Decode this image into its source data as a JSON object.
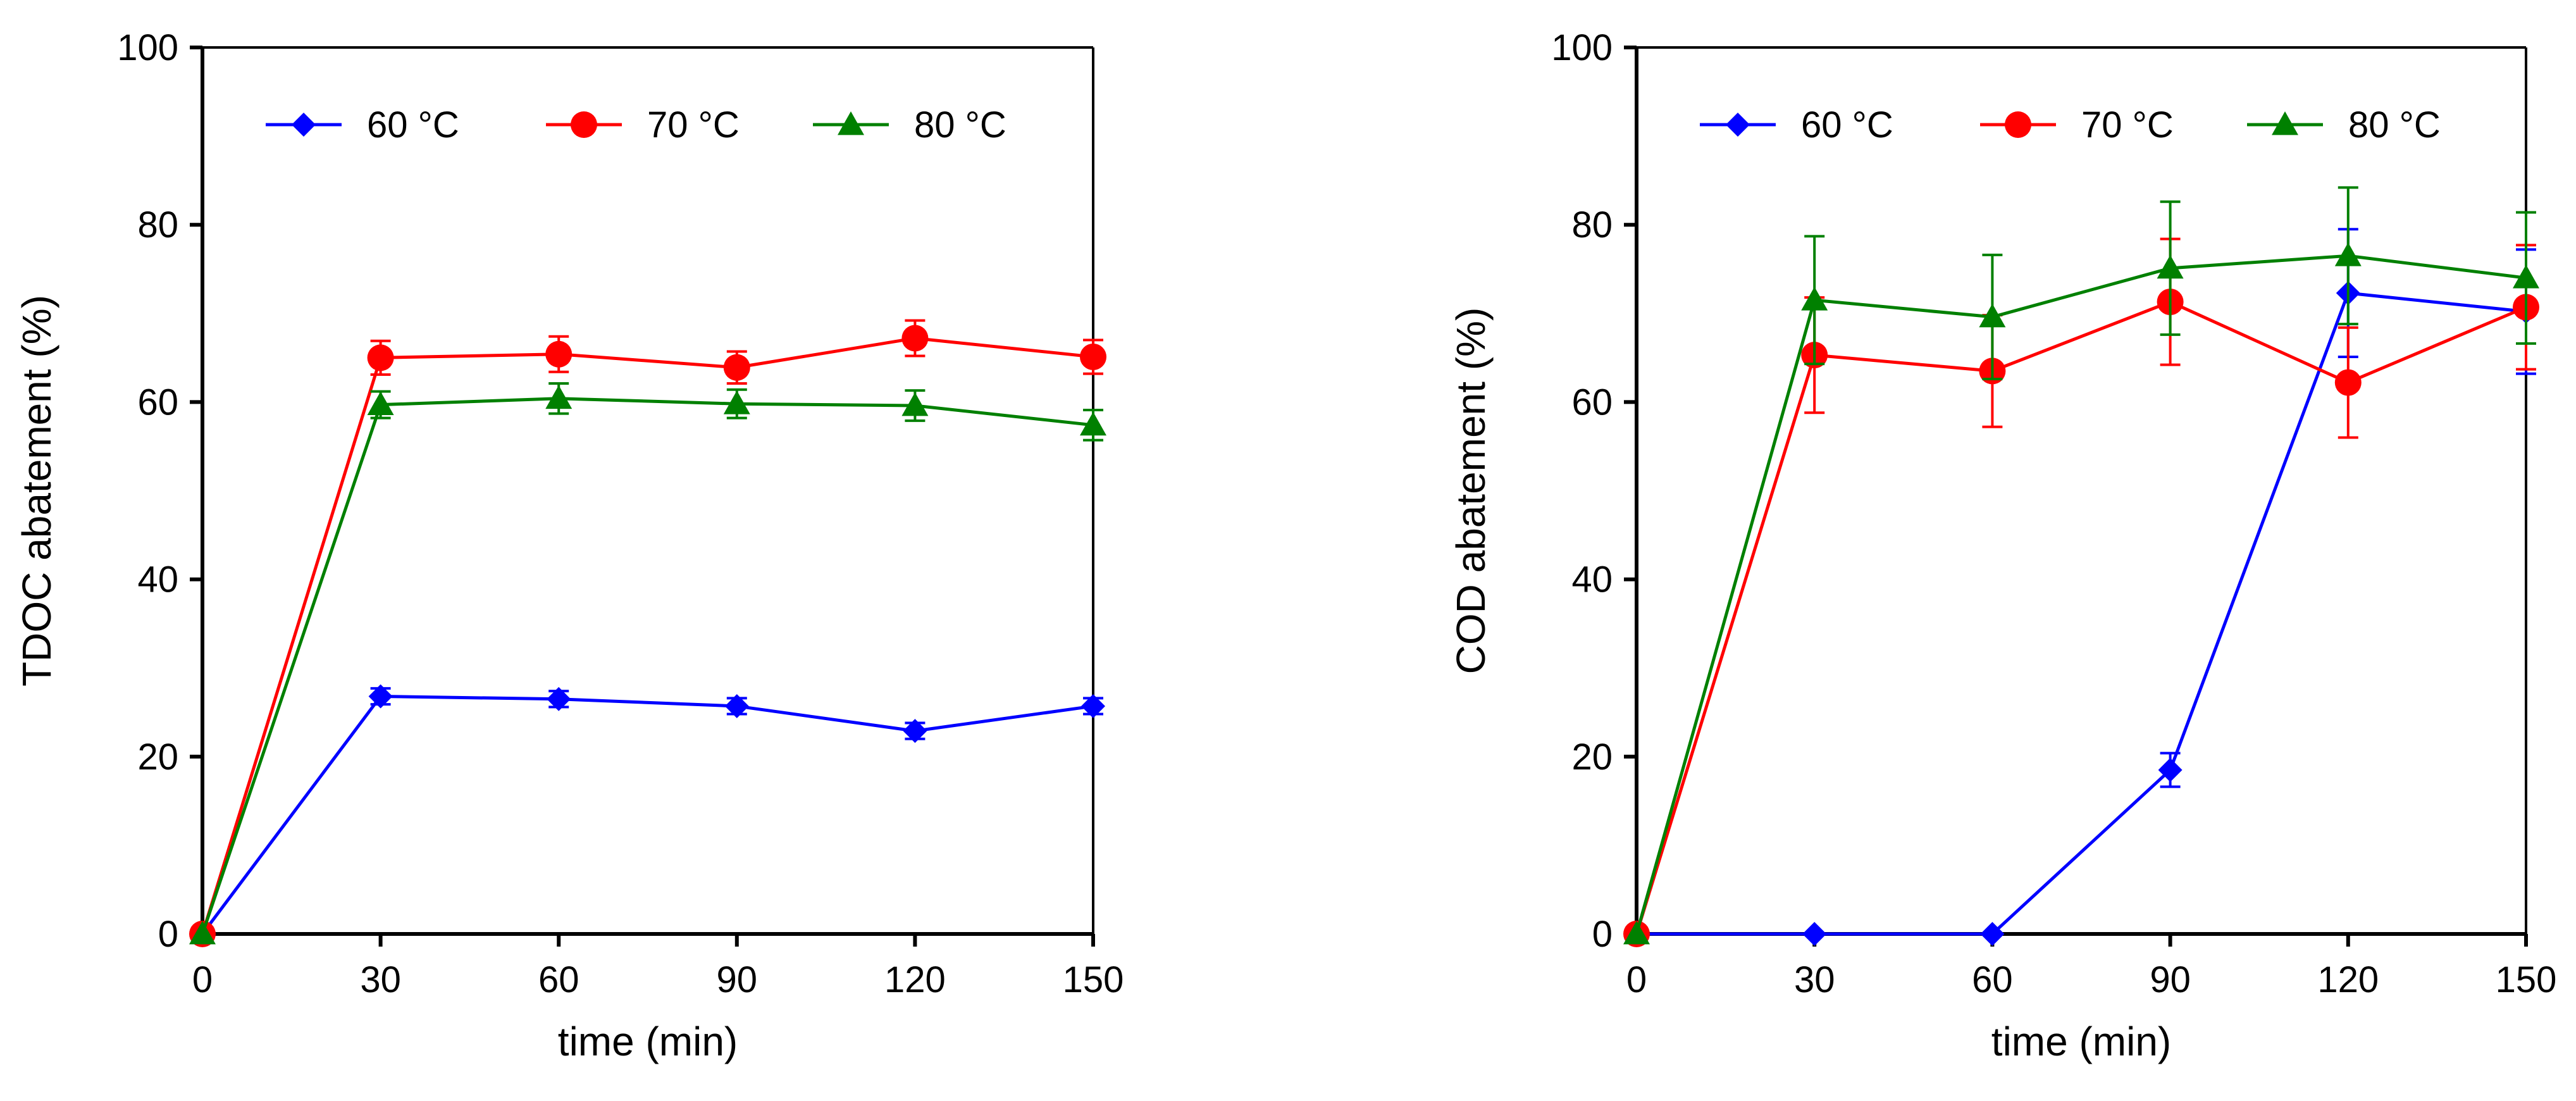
{
  "chart_data": [
    {
      "type": "line",
      "title": "",
      "xlabel": "time (min)",
      "ylabel": "TDOC abatement (%)",
      "xlim": [
        0,
        150
      ],
      "ylim": [
        0,
        100
      ],
      "xticks": [
        "0",
        "30",
        "60",
        "90",
        "120",
        "150"
      ],
      "yticks": [
        "0",
        "20",
        "40",
        "60",
        "80",
        "100"
      ],
      "grid": false,
      "legend_position": "top",
      "x": [
        0,
        30,
        60,
        90,
        120,
        150
      ],
      "series": [
        {
          "name": "60 °C",
          "color": "#0000ff",
          "marker": "diamond",
          "values": [
            0,
            26.8,
            26.5,
            25.7,
            22.9,
            25.7
          ],
          "errors": [
            0,
            0.9,
            0.9,
            0.9,
            0.9,
            0.9
          ]
        },
        {
          "name": "70 °C",
          "color": "#ff0000",
          "marker": "circle",
          "values": [
            0,
            65.0,
            65.4,
            63.9,
            67.2,
            65.1
          ],
          "errors": [
            0,
            1.9,
            2.0,
            1.8,
            2.0,
            1.9
          ]
        },
        {
          "name": "80 °C",
          "color": "#008000",
          "marker": "triangle",
          "values": [
            0,
            59.7,
            60.4,
            59.8,
            59.6,
            57.4
          ],
          "errors": [
            0,
            1.5,
            1.7,
            1.6,
            1.7,
            1.7
          ]
        }
      ]
    },
    {
      "type": "line",
      "title": "",
      "xlabel": "time (min)",
      "ylabel": "COD abatement (%)",
      "xlim": [
        0,
        150
      ],
      "ylim": [
        0,
        100
      ],
      "xticks": [
        "0",
        "30",
        "60",
        "90",
        "120",
        "150"
      ],
      "yticks": [
        "0",
        "20",
        "40",
        "60",
        "80",
        "100"
      ],
      "grid": false,
      "legend_position": "top",
      "x": [
        0,
        30,
        60,
        90,
        120,
        150
      ],
      "series": [
        {
          "name": "60 °C",
          "color": "#0000ff",
          "marker": "diamond",
          "values": [
            0,
            0,
            0,
            18.5,
            72.3,
            70.2
          ],
          "errors": [
            0,
            0,
            0,
            1.9,
            7.2,
            7.0
          ]
        },
        {
          "name": "70 °C",
          "color": "#ff0000",
          "marker": "circle",
          "values": [
            0,
            65.3,
            63.5,
            71.3,
            62.2,
            70.7
          ],
          "errors": [
            0,
            6.5,
            6.3,
            7.1,
            6.2,
            7.0
          ]
        },
        {
          "name": "80 °C",
          "color": "#008000",
          "marker": "triangle",
          "values": [
            0,
            71.5,
            69.6,
            75.1,
            76.5,
            74.0
          ],
          "errors": [
            0,
            7.2,
            7.0,
            7.5,
            7.7,
            7.4
          ]
        }
      ]
    }
  ]
}
